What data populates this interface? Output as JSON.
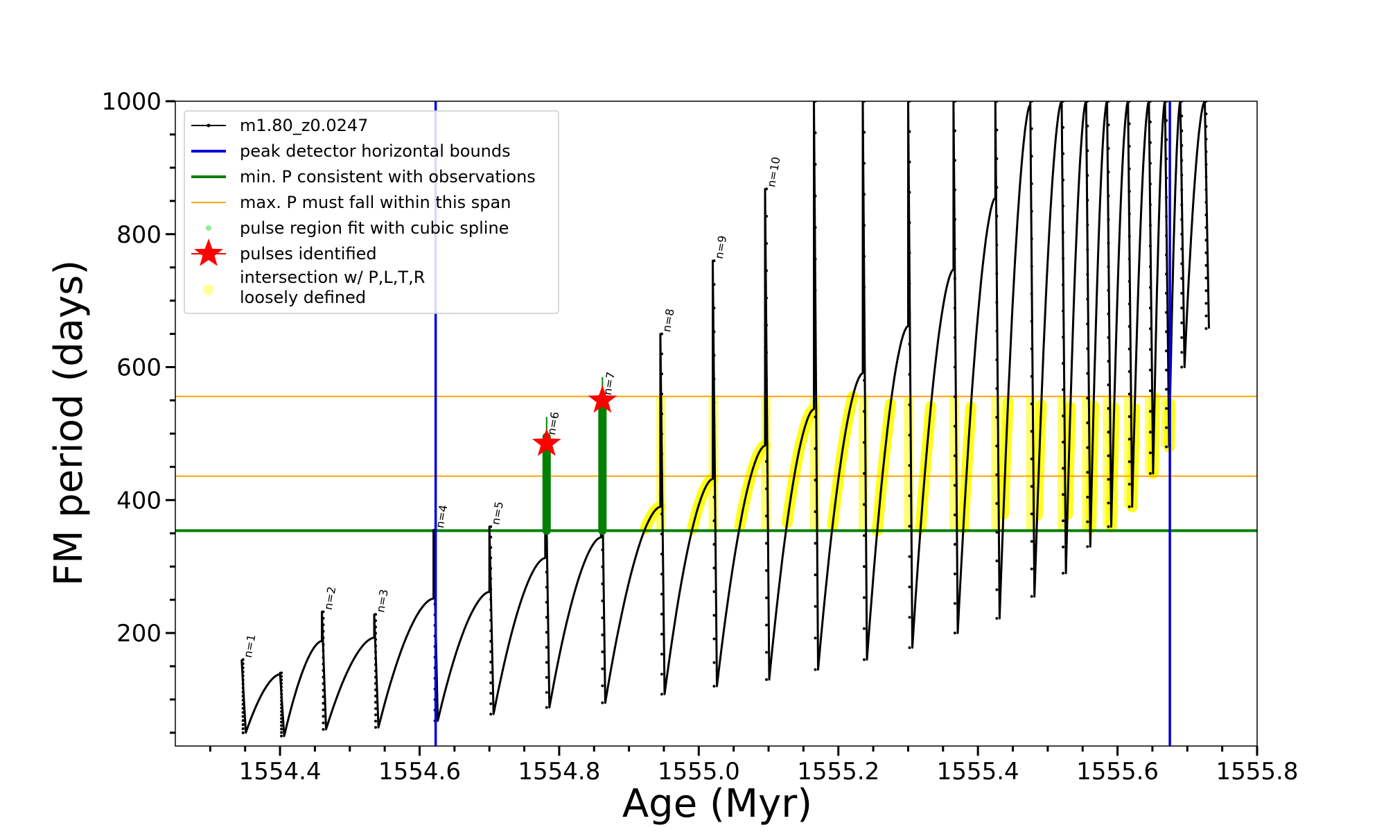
{
  "chart_data": {
    "type": "line",
    "xlabel": "Age (Myr)",
    "ylabel": "FM period (days)",
    "xlim": [
      1554.25,
      1555.8
    ],
    "ylim": [
      30,
      1000
    ],
    "x_ticks": [
      {
        "value": 1554.4,
        "label": "1554.4"
      },
      {
        "value": 1554.6,
        "label": "1554.6"
      },
      {
        "value": 1554.8,
        "label": "1554.8"
      },
      {
        "value": 1555.0,
        "label": "1555.0"
      },
      {
        "value": 1555.2,
        "label": "1555.2"
      },
      {
        "value": 1555.4,
        "label": "1555.4"
      },
      {
        "value": 1555.6,
        "label": "1555.6"
      },
      {
        "value": 1555.8,
        "label": "1555.8"
      }
    ],
    "y_ticks": [
      {
        "value": 200,
        "label": "200"
      },
      {
        "value": 400,
        "label": "400"
      },
      {
        "value": 600,
        "label": "600"
      },
      {
        "value": 800,
        "label": "800"
      },
      {
        "value": 1000,
        "label": "1000"
      }
    ],
    "legend": {
      "position": "top-left",
      "entries": [
        {
          "label": "m1.80_z0.0247",
          "kind": "line-marker",
          "color": "#000000"
        },
        {
          "label": "peak detector horizontal bounds",
          "kind": "line",
          "color": "#0000dd"
        },
        {
          "label": "min. P consistent with observations",
          "kind": "line",
          "color": "#008000"
        },
        {
          "label": "max. P must fall within this span",
          "kind": "thin-line",
          "color": "#ffa500"
        },
        {
          "label": "pulse region fit with cubic spline",
          "kind": "dot",
          "color": "#90ee90"
        },
        {
          "label": "pulses identified",
          "kind": "star",
          "color": "#ff0000"
        },
        {
          "label": "intersection w/ P,L,T,R",
          "label2": "loosely defined",
          "kind": "circle",
          "color": "#ffff99"
        }
      ]
    },
    "vertical_bounds": {
      "color": "#0000dd",
      "x": [
        1554.623,
        1555.675
      ]
    },
    "min_period_line": {
      "color": "#008000",
      "y": 354
    },
    "max_period_span": {
      "color": "#ffa500",
      "y": [
        436,
        556
      ]
    },
    "series_color": "#000000",
    "intersection_color": "#ffff00",
    "spline_color": "#008000",
    "star_color": "#ff0000",
    "cycles": [
      {
        "x0": 1554.345,
        "top": 160,
        "bottom": 50,
        "x1": 1554.4,
        "ymax": 138,
        "label": "n=1"
      },
      {
        "x0": 1554.4,
        "top": 140,
        "bottom": 45,
        "x1": 1554.46,
        "ymax": 188
      },
      {
        "x0": 1554.46,
        "top": 232,
        "bottom": 55,
        "x1": 1554.535,
        "ymax": 193,
        "label": "n=2"
      },
      {
        "x0": 1554.535,
        "top": 228,
        "bottom": 58,
        "x1": 1554.62,
        "ymax": 252,
        "label": "n=3"
      },
      {
        "x0": 1554.62,
        "top": 355,
        "bottom": 68,
        "x1": 1554.7,
        "ymax": 262,
        "label": "n=4"
      },
      {
        "x0": 1554.7,
        "top": 360,
        "bottom": 78,
        "x1": 1554.78,
        "ymax": 313,
        "label": "n=5"
      },
      {
        "x0": 1554.78,
        "top": 495,
        "bottom": 88,
        "x1": 1554.86,
        "ymax": 344,
        "label": "n=6"
      },
      {
        "x0": 1554.86,
        "top": 555,
        "bottom": 95,
        "x1": 1554.945,
        "ymax": 390,
        "label": "n=7"
      },
      {
        "x0": 1554.945,
        "top": 650,
        "bottom": 108,
        "x1": 1555.02,
        "ymax": 432,
        "label": "n=8"
      },
      {
        "x0": 1555.02,
        "top": 760,
        "bottom": 120,
        "x1": 1555.095,
        "ymax": 482,
        "label": "n=9"
      },
      {
        "x0": 1555.095,
        "top": 868,
        "bottom": 130,
        "x1": 1555.165,
        "ymax": 537,
        "label": "n=10"
      },
      {
        "x0": 1555.165,
        "top": 1000,
        "bottom": 145,
        "x1": 1555.235,
        "ymax": 591
      },
      {
        "x0": 1555.235,
        "top": 1000,
        "bottom": 160,
        "x1": 1555.3,
        "ymax": 662
      },
      {
        "x0": 1555.3,
        "top": 1000,
        "bottom": 178,
        "x1": 1555.365,
        "ymax": 747
      },
      {
        "x0": 1555.365,
        "top": 1000,
        "bottom": 200,
        "x1": 1555.425,
        "ymax": 855
      },
      {
        "x0": 1555.425,
        "top": 1000,
        "bottom": 222,
        "x1": 1555.475,
        "ymax": 995
      },
      {
        "x0": 1555.475,
        "top": 1000,
        "bottom": 255,
        "x1": 1555.52,
        "ymax": 1000
      },
      {
        "x0": 1555.52,
        "top": 1000,
        "bottom": 290,
        "x1": 1555.555,
        "ymax": 1000
      },
      {
        "x0": 1555.555,
        "top": 1000,
        "bottom": 330,
        "x1": 1555.585,
        "ymax": 1000
      },
      {
        "x0": 1555.585,
        "top": 1000,
        "bottom": 360,
        "x1": 1555.615,
        "ymax": 1000
      },
      {
        "x0": 1555.615,
        "top": 1000,
        "bottom": 390,
        "x1": 1555.645,
        "ymax": 1000
      },
      {
        "x0": 1555.645,
        "top": 1000,
        "bottom": 440,
        "x1": 1555.668,
        "ymax": 1000
      },
      {
        "x0": 1555.668,
        "top": 1000,
        "bottom": 480,
        "x1": 1555.69,
        "ymax": 1000
      },
      {
        "x0": 1555.69,
        "top": 1000,
        "bottom": 600,
        "x1": 1555.725,
        "ymax": 1000
      },
      {
        "x0": 1555.725,
        "top": 1000,
        "bottom": 658
      }
    ],
    "pulses_identified": [
      {
        "x": 1554.782,
        "y": 485
      },
      {
        "x": 1554.862,
        "y": 550
      }
    ]
  }
}
